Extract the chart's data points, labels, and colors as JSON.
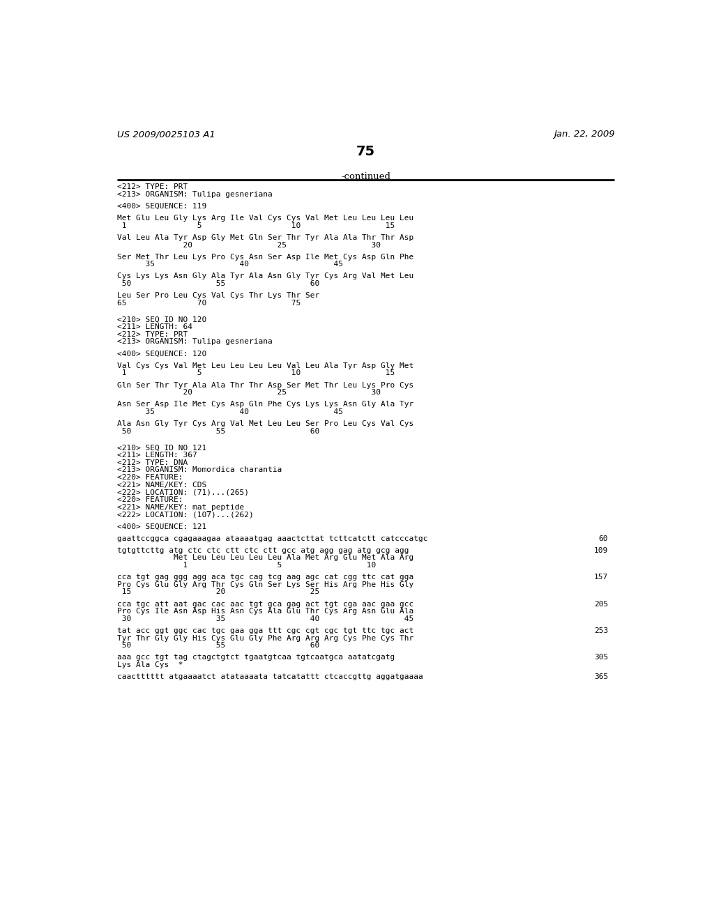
{
  "header_left": "US 2009/0025103 A1",
  "header_right": "Jan. 22, 2009",
  "page_number": "75",
  "continued_label": "-continued",
  "background_color": "#ffffff",
  "text_color": "#000000",
  "content": [
    {
      "type": "text",
      "text": "<212> TYPE: PRT"
    },
    {
      "type": "text",
      "text": "<213> ORGANISM: Tulipa gesneriana"
    },
    {
      "type": "blank"
    },
    {
      "type": "text",
      "text": "<400> SEQUENCE: 119"
    },
    {
      "type": "blank"
    },
    {
      "type": "text",
      "text": "Met Glu Leu Gly Lys Arg Ile Val Cys Cys Val Met Leu Leu Leu Leu"
    },
    {
      "type": "text",
      "text": " 1               5                   10                  15"
    },
    {
      "type": "blank"
    },
    {
      "type": "text",
      "text": "Val Leu Ala Tyr Asp Gly Met Gln Ser Thr Tyr Ala Ala Thr Thr Asp"
    },
    {
      "type": "text",
      "text": "              20                  25                  30"
    },
    {
      "type": "blank"
    },
    {
      "type": "text",
      "text": "Ser Met Thr Leu Lys Pro Cys Asn Ser Asp Ile Met Cys Asp Gln Phe"
    },
    {
      "type": "text",
      "text": "      35                  40                  45"
    },
    {
      "type": "blank"
    },
    {
      "type": "text",
      "text": "Cys Lys Lys Asn Gly Ala Tyr Ala Asn Gly Tyr Cys Arg Val Met Leu"
    },
    {
      "type": "text",
      "text": " 50                  55                  60"
    },
    {
      "type": "blank"
    },
    {
      "type": "text",
      "text": "Leu Ser Pro Leu Cys Val Cys Thr Lys Thr Ser"
    },
    {
      "type": "text",
      "text": "65               70                  75"
    },
    {
      "type": "blank"
    },
    {
      "type": "blank"
    },
    {
      "type": "text",
      "text": "<210> SEQ ID NO 120"
    },
    {
      "type": "text",
      "text": "<211> LENGTH: 64"
    },
    {
      "type": "text",
      "text": "<212> TYPE: PRT"
    },
    {
      "type": "text",
      "text": "<213> ORGANISM: Tulipa gesneriana"
    },
    {
      "type": "blank"
    },
    {
      "type": "text",
      "text": "<400> SEQUENCE: 120"
    },
    {
      "type": "blank"
    },
    {
      "type": "text",
      "text": "Val Cys Cys Val Met Leu Leu Leu Leu Val Leu Ala Tyr Asp Gly Met"
    },
    {
      "type": "text",
      "text": " 1               5                   10                  15"
    },
    {
      "type": "blank"
    },
    {
      "type": "text",
      "text": "Gln Ser Thr Tyr Ala Ala Thr Thr Asp Ser Met Thr Leu Lys Pro Cys"
    },
    {
      "type": "text",
      "text": "              20                  25                  30"
    },
    {
      "type": "blank"
    },
    {
      "type": "text",
      "text": "Asn Ser Asp Ile Met Cys Asp Gln Phe Cys Lys Lys Asn Gly Ala Tyr"
    },
    {
      "type": "text",
      "text": "      35                  40                  45"
    },
    {
      "type": "blank"
    },
    {
      "type": "text",
      "text": "Ala Asn Gly Tyr Cys Arg Val Met Leu Leu Ser Pro Leu Cys Val Cys"
    },
    {
      "type": "text",
      "text": " 50                  55                  60"
    },
    {
      "type": "blank"
    },
    {
      "type": "blank"
    },
    {
      "type": "text",
      "text": "<210> SEQ ID NO 121"
    },
    {
      "type": "text",
      "text": "<211> LENGTH: 367"
    },
    {
      "type": "text",
      "text": "<212> TYPE: DNA"
    },
    {
      "type": "text",
      "text": "<213> ORGANISM: Momordica charantia"
    },
    {
      "type": "text",
      "text": "<220> FEATURE:"
    },
    {
      "type": "text",
      "text": "<221> NAME/KEY: CDS"
    },
    {
      "type": "text",
      "text": "<222> LOCATION: (71)...(265)"
    },
    {
      "type": "text",
      "text": "<220> FEATURE:"
    },
    {
      "type": "text",
      "text": "<221> NAME/KEY: mat_peptide"
    },
    {
      "type": "text",
      "text": "<222> LOCATION: (107)...(262)"
    },
    {
      "type": "blank"
    },
    {
      "type": "text",
      "text": "<400> SEQUENCE: 121"
    },
    {
      "type": "blank"
    },
    {
      "type": "text_num",
      "text": "gaattccggca cgagaaagaa ataaaatgag aaactcttat tcttcatctt catcccatgc",
      "num": "60"
    },
    {
      "type": "blank"
    },
    {
      "type": "text_num",
      "text": "tgtgttcttg atg ctc ctc ctt ctc ctt gcc atg agg gag atg gcg agg",
      "num": "109"
    },
    {
      "type": "text",
      "text": "            Met Leu Leu Leu Leu Leu Ala Met Arg Glu Met Ala Arg"
    },
    {
      "type": "text",
      "text": "              1                   5                  10"
    },
    {
      "type": "blank"
    },
    {
      "type": "text_num",
      "text": "cca tgt gag ggg agg aca tgc cag tcg aag agc cat cgg ttc cat gga",
      "num": "157"
    },
    {
      "type": "text",
      "text": "Pro Cys Glu Gly Arg Thr Cys Gln Ser Lys Ser His Arg Phe His Gly"
    },
    {
      "type": "text",
      "text": " 15                  20                  25"
    },
    {
      "type": "blank"
    },
    {
      "type": "text_num",
      "text": "cca tgc att aat gac cac aac tgt gca gag act tgt cga aac gaa gcc",
      "num": "205"
    },
    {
      "type": "text",
      "text": "Pro Cys Ile Asn Asp His Asn Cys Ala Glu Thr Cys Arg Asn Glu Ala"
    },
    {
      "type": "text",
      "text": " 30                  35                  40                  45"
    },
    {
      "type": "blank"
    },
    {
      "type": "text_num",
      "text": "tat acc ggt ggc cac tgc gaa gga ttt cgc cgt cgc tgt ttc tgc act",
      "num": "253"
    },
    {
      "type": "text",
      "text": "Tyr Thr Gly Gly His Cys Glu Gly Phe Arg Arg Arg Cys Phe Cys Thr"
    },
    {
      "type": "text",
      "text": " 50                  55                  60"
    },
    {
      "type": "blank"
    },
    {
      "type": "text_num",
      "text": "aaa gcc tgt tag ctagctgtct tgaatgtcaa tgtcaatgca aatatcgatg",
      "num": "305"
    },
    {
      "type": "text",
      "text": "Lys Ala Cys  *"
    },
    {
      "type": "blank"
    },
    {
      "type": "text_num",
      "text": "caactttttt atgaaaatct atataaaata tatcatattt ctcaccgttg aggatgaaaa",
      "num": "365"
    }
  ]
}
